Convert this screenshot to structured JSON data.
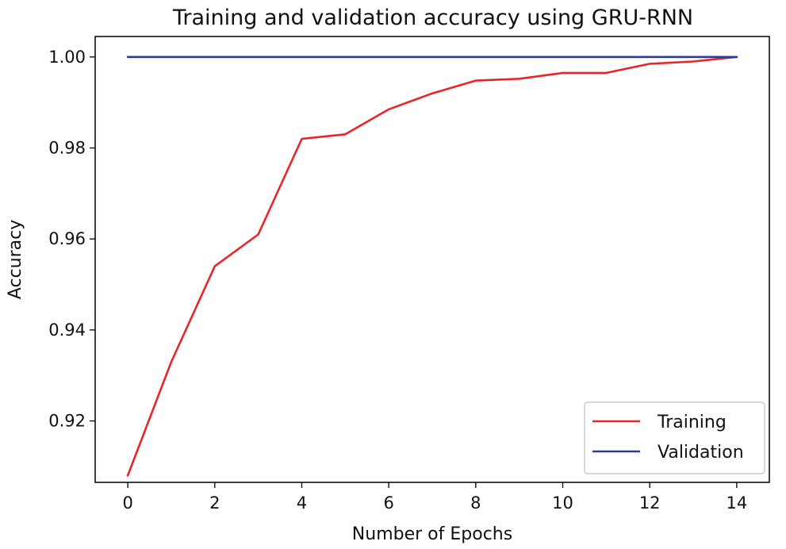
{
  "chart_data": {
    "type": "line",
    "title": "Training and validation accuracy using GRU-RNN",
    "xlabel": "Number of Epochs",
    "ylabel": "Accuracy",
    "xlim": [
      -0.75,
      14.75
    ],
    "ylim": [
      0.9065,
      1.0045
    ],
    "xticks": [
      0,
      2,
      4,
      6,
      8,
      10,
      12,
      14
    ],
    "xtick_labels": [
      "0",
      "2",
      "4",
      "6",
      "8",
      "10",
      "12",
      "14"
    ],
    "yticks": [
      0.92,
      0.94,
      0.96,
      0.98,
      1.0
    ],
    "ytick_labels": [
      "0.92",
      "0.94",
      "0.96",
      "0.98",
      "1.00"
    ],
    "grid": false,
    "legend_position": "lower-right",
    "x": [
      0,
      1,
      2,
      3,
      4,
      5,
      6,
      7,
      8,
      9,
      10,
      11,
      12,
      13,
      14
    ],
    "series": [
      {
        "name": "Training",
        "color": "#e8262a",
        "values": [
          0.908,
          0.933,
          0.954,
          0.961,
          0.982,
          0.983,
          0.9885,
          0.992,
          0.9948,
          0.9952,
          0.9965,
          0.9965,
          0.9985,
          0.999,
          1.0
        ]
      },
      {
        "name": "Validation",
        "color": "#2e3a97",
        "values": [
          1.0,
          1.0,
          1.0,
          1.0,
          1.0,
          1.0,
          1.0,
          1.0,
          1.0,
          1.0,
          1.0,
          1.0,
          1.0,
          1.0,
          1.0
        ]
      }
    ]
  }
}
